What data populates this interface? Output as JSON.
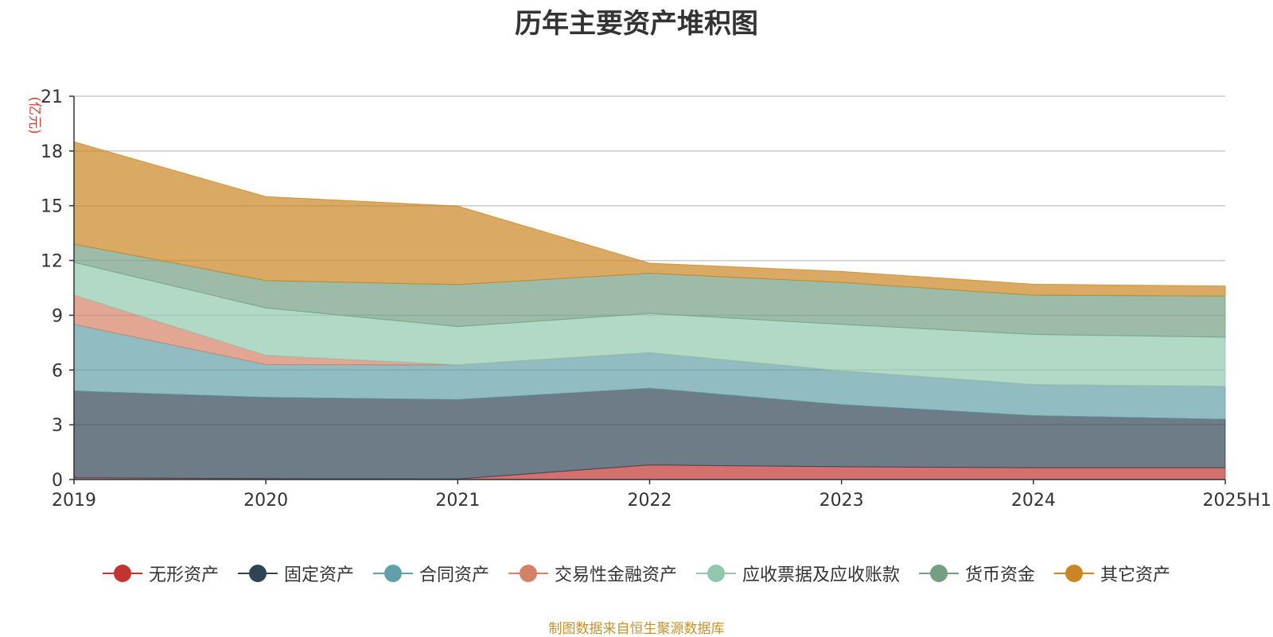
{
  "chart_data": {
    "type": "area",
    "stacked": true,
    "title": "历年主要资产堆积图",
    "ylabel": "(亿元)",
    "xlabel": "",
    "categories": [
      "2019",
      "2020",
      "2021",
      "2022",
      "2023",
      "2024",
      "2025H1"
    ],
    "yticks": [
      "0",
      "3",
      "6",
      "9",
      "12",
      "15",
      "18",
      "21"
    ],
    "ylim": [
      0,
      21
    ],
    "grid": true,
    "legend_position": "bottom",
    "series": [
      {
        "name": "无形资产",
        "color": "#c23531",
        "values": [
          0.1,
          0.05,
          0.03,
          0.8,
          0.7,
          0.65,
          0.65
        ]
      },
      {
        "name": "固定资产",
        "color": "#2f4554",
        "values": [
          4.75,
          4.45,
          4.35,
          4.2,
          3.4,
          2.85,
          2.65
        ]
      },
      {
        "name": "合同资产",
        "color": "#61a0a8",
        "values": [
          3.65,
          1.8,
          1.9,
          1.95,
          1.85,
          1.7,
          1.8
        ]
      },
      {
        "name": "交易性金融资产",
        "color": "#d48265",
        "values": [
          1.6,
          0.5,
          0.0,
          0.0,
          0.0,
          0.0,
          0.0
        ]
      },
      {
        "name": "应收票据及应收账款",
        "color": "#91c7ae",
        "values": [
          1.8,
          2.6,
          2.1,
          2.15,
          2.55,
          2.75,
          2.7
        ]
      },
      {
        "name": "货币资金",
        "color": "#749f83",
        "values": [
          1.0,
          1.5,
          2.3,
          2.2,
          2.3,
          2.15,
          2.25
        ]
      },
      {
        "name": "其它资产",
        "color": "#ca8622",
        "values": [
          5.6,
          4.6,
          4.3,
          0.55,
          0.6,
          0.6,
          0.55
        ]
      }
    ]
  },
  "source_note": "制图数据来自恒生聚源数据库"
}
